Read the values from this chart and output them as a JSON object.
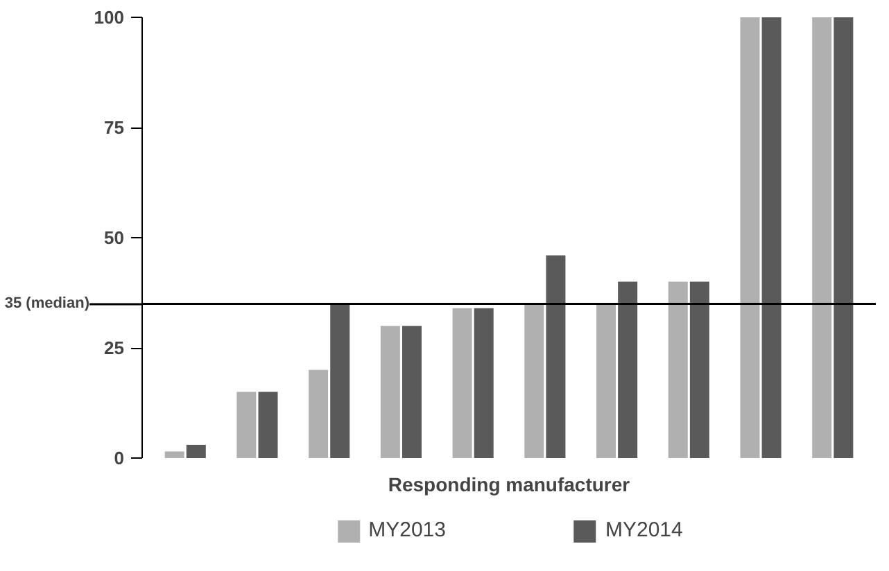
{
  "chart_data": {
    "type": "bar",
    "xlabel": "Responding manufacturer",
    "categories": [
      null,
      null,
      null,
      null,
      null,
      null,
      null,
      null,
      null,
      null
    ],
    "series": [
      {
        "name": "MY2013",
        "color": "#b0b0b0",
        "values": [
          1.5,
          15,
          20,
          30,
          34,
          35,
          35,
          40,
          100,
          100
        ]
      },
      {
        "name": "MY2014",
        "color": "#5a5a5a",
        "values": [
          3,
          15,
          35,
          30,
          34,
          46,
          40,
          40,
          100,
          100
        ]
      }
    ],
    "ylim": [
      0,
      100
    ],
    "yticks": [
      0,
      25,
      50,
      75,
      100
    ],
    "grid": false,
    "legend": "bottom",
    "ref_lines": [
      {
        "axis": "y",
        "value": 35,
        "label": "35 (median)",
        "color": "#000000"
      }
    ]
  }
}
